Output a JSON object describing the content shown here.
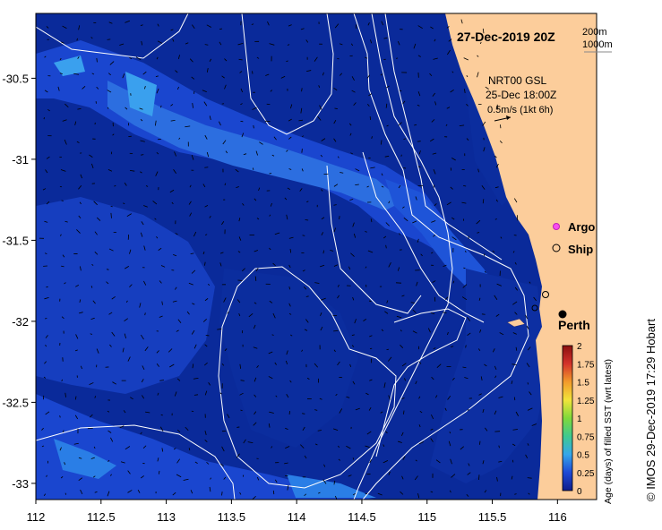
{
  "map": {
    "title": "27-Dec-2019 20Z",
    "isobath_labels": [
      "200m",
      "1000m"
    ],
    "current_info": [
      "NRT00 GSL",
      "25-Dec 18:00Z",
      "0.5m/s (1kt 6h)"
    ],
    "legend": {
      "argo": "Argo",
      "ship": "Ship"
    },
    "city": "Perth",
    "credit": "© IMOS 29-Dec-2019 17:29 Hobart",
    "colorbar_title": "Age (days) of filled SST (wrt latest)",
    "colorbar_ticks": [
      "2",
      "1.75",
      "1.5",
      "1.25",
      "1",
      "0.75",
      "0.5",
      "0.25",
      "0"
    ],
    "colorbar_colors": [
      "#0e1c8a",
      "#1e49d6",
      "#35a7ea",
      "#3ec98f",
      "#7fd93a",
      "#f1e43a",
      "#f29a2a",
      "#d4322a",
      "#8a1010"
    ],
    "land_color": "#fccd9b",
    "sea_color": "#0a2a9a"
  },
  "chart_data": {
    "type": "heatmap",
    "xlabel": "",
    "ylabel": "",
    "xlim": [
      112,
      116.3
    ],
    "ylim": [
      -33.1,
      -30.1
    ],
    "x_ticks": [
      "112",
      "112.5",
      "113",
      "113.5",
      "114",
      "114.5",
      "115",
      "115.5",
      "116"
    ],
    "y_ticks": [
      "-30.5",
      "-31",
      "-31.5",
      "-32",
      "-32.5",
      "-33"
    ],
    "value_range": [
      0,
      2
    ],
    "perth": [
      115.86,
      -31.95
    ]
  }
}
